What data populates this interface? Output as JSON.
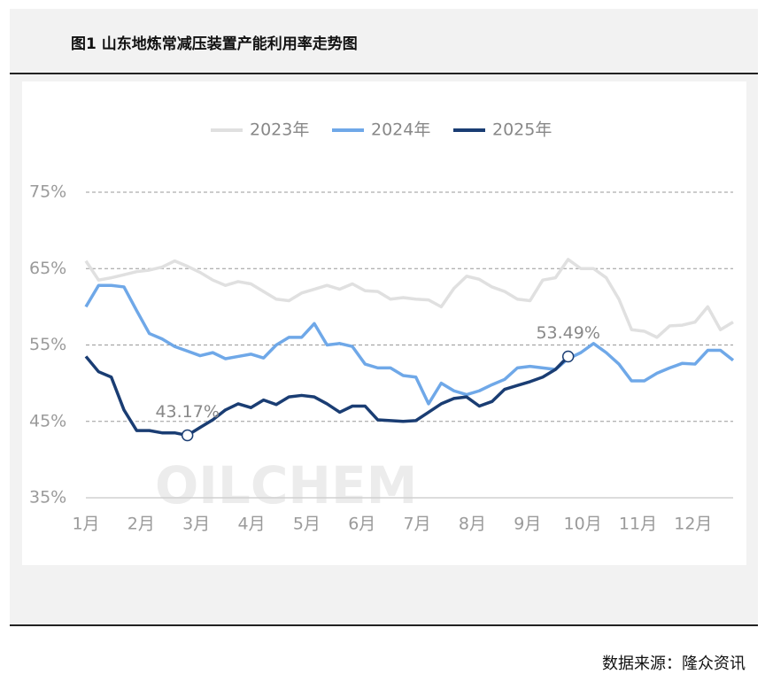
{
  "title": "图1 山东地炼常减压装置产能利用率走势图",
  "source": "数据来源：隆众资讯",
  "chart_data": {
    "type": "line",
    "watermark": "OILCHEM",
    "x": [
      1,
      2,
      3,
      4,
      5,
      6,
      7,
      8,
      9,
      10,
      11,
      12,
      13,
      14,
      15,
      16,
      17,
      18,
      19,
      20,
      21,
      22,
      23,
      24,
      25,
      26,
      27,
      28,
      29,
      30,
      31,
      32,
      33,
      34,
      35,
      36,
      37,
      38,
      39,
      40,
      41,
      42,
      43,
      44,
      45,
      46,
      47,
      48,
      49,
      50,
      51,
      52
    ],
    "xlim": [
      1,
      52
    ],
    "xticks": [
      {
        "value": 1,
        "label": "1月"
      },
      {
        "value": 5.35,
        "label": "2月"
      },
      {
        "value": 9.7,
        "label": "3月"
      },
      {
        "value": 14.05,
        "label": "4月"
      },
      {
        "value": 18.4,
        "label": "5月"
      },
      {
        "value": 22.75,
        "label": "6月"
      },
      {
        "value": 27.1,
        "label": "7月"
      },
      {
        "value": 31.45,
        "label": "8月"
      },
      {
        "value": 35.8,
        "label": "9月"
      },
      {
        "value": 40.15,
        "label": "10月"
      },
      {
        "value": 44.5,
        "label": "11月"
      },
      {
        "value": 48.85,
        "label": "12月"
      }
    ],
    "ylim": [
      35,
      75
    ],
    "yticks": [
      {
        "value": 35,
        "label": "35%"
      },
      {
        "value": 45,
        "label": "45%"
      },
      {
        "value": 55,
        "label": "55%"
      },
      {
        "value": 65,
        "label": "65%"
      },
      {
        "value": 75,
        "label": "75%"
      }
    ],
    "grid": true,
    "legend": "top",
    "series": [
      {
        "name": "2023年",
        "color": "#e0e0e0",
        "values": [
          66,
          63.5,
          63.8,
          64.2,
          64.6,
          64.8,
          65.2,
          66,
          65.3,
          64.5,
          63.5,
          62.8,
          63.3,
          63,
          62,
          61,
          60.8,
          61.8,
          62.3,
          62.8,
          62.3,
          63,
          62.1,
          62,
          61,
          61.2,
          61,
          60.9,
          60,
          62.4,
          64,
          63.6,
          62.6,
          62,
          61,
          60.8,
          63.5,
          63.8,
          66.2,
          65,
          65,
          63.8,
          61,
          57,
          56.8,
          56,
          57.5,
          57.6,
          58,
          60,
          57,
          58
        ]
      },
      {
        "name": "2024年",
        "color": "#6fa8e8",
        "values": [
          60,
          62.8,
          62.8,
          62.6,
          59.5,
          56.5,
          55.8,
          54.8,
          54.2,
          53.6,
          54,
          53.2,
          53.5,
          53.8,
          53.3,
          55,
          56,
          56,
          57.8,
          55,
          55.2,
          54.8,
          52.5,
          52,
          52,
          51,
          50.8,
          47.3,
          50,
          49,
          48.5,
          49,
          49.8,
          50.5,
          52,
          52.2,
          52,
          51.8,
          53.2,
          54,
          55.2,
          54,
          52.5,
          50.3,
          50.3,
          51.3,
          52,
          52.6,
          52.5,
          54.3,
          54.3,
          53
        ]
      },
      {
        "name": "2025年",
        "color": "#1a3d73",
        "values": [
          53.5,
          51.5,
          50.8,
          46.5,
          43.8,
          43.8,
          43.5,
          43.5,
          43.17,
          44.2,
          45.2,
          46.5,
          47.3,
          46.8,
          47.8,
          47.2,
          48.2,
          48.4,
          48.2,
          47.3,
          46.2,
          47,
          47,
          45.2,
          45.1,
          45,
          45.1,
          46.2,
          47.3,
          48,
          48.2,
          47,
          47.6,
          49.2,
          49.7,
          50.2,
          50.8,
          51.8,
          53.49,
          null,
          null,
          null,
          null,
          null,
          null,
          null,
          null,
          null,
          null,
          null,
          null,
          null
        ],
        "value_labels": [
          null,
          null,
          null,
          null,
          null,
          null,
          null,
          null,
          "43.17%",
          null,
          null,
          null,
          null,
          null,
          null,
          null,
          null,
          null,
          null,
          null,
          null,
          null,
          null,
          null,
          null,
          null,
          null,
          null,
          null,
          null,
          null,
          null,
          null,
          null,
          null,
          null,
          null,
          null,
          "53.49%",
          null,
          null,
          null,
          null,
          null,
          null,
          null,
          null,
          null,
          null,
          null,
          null,
          null
        ]
      }
    ]
  }
}
